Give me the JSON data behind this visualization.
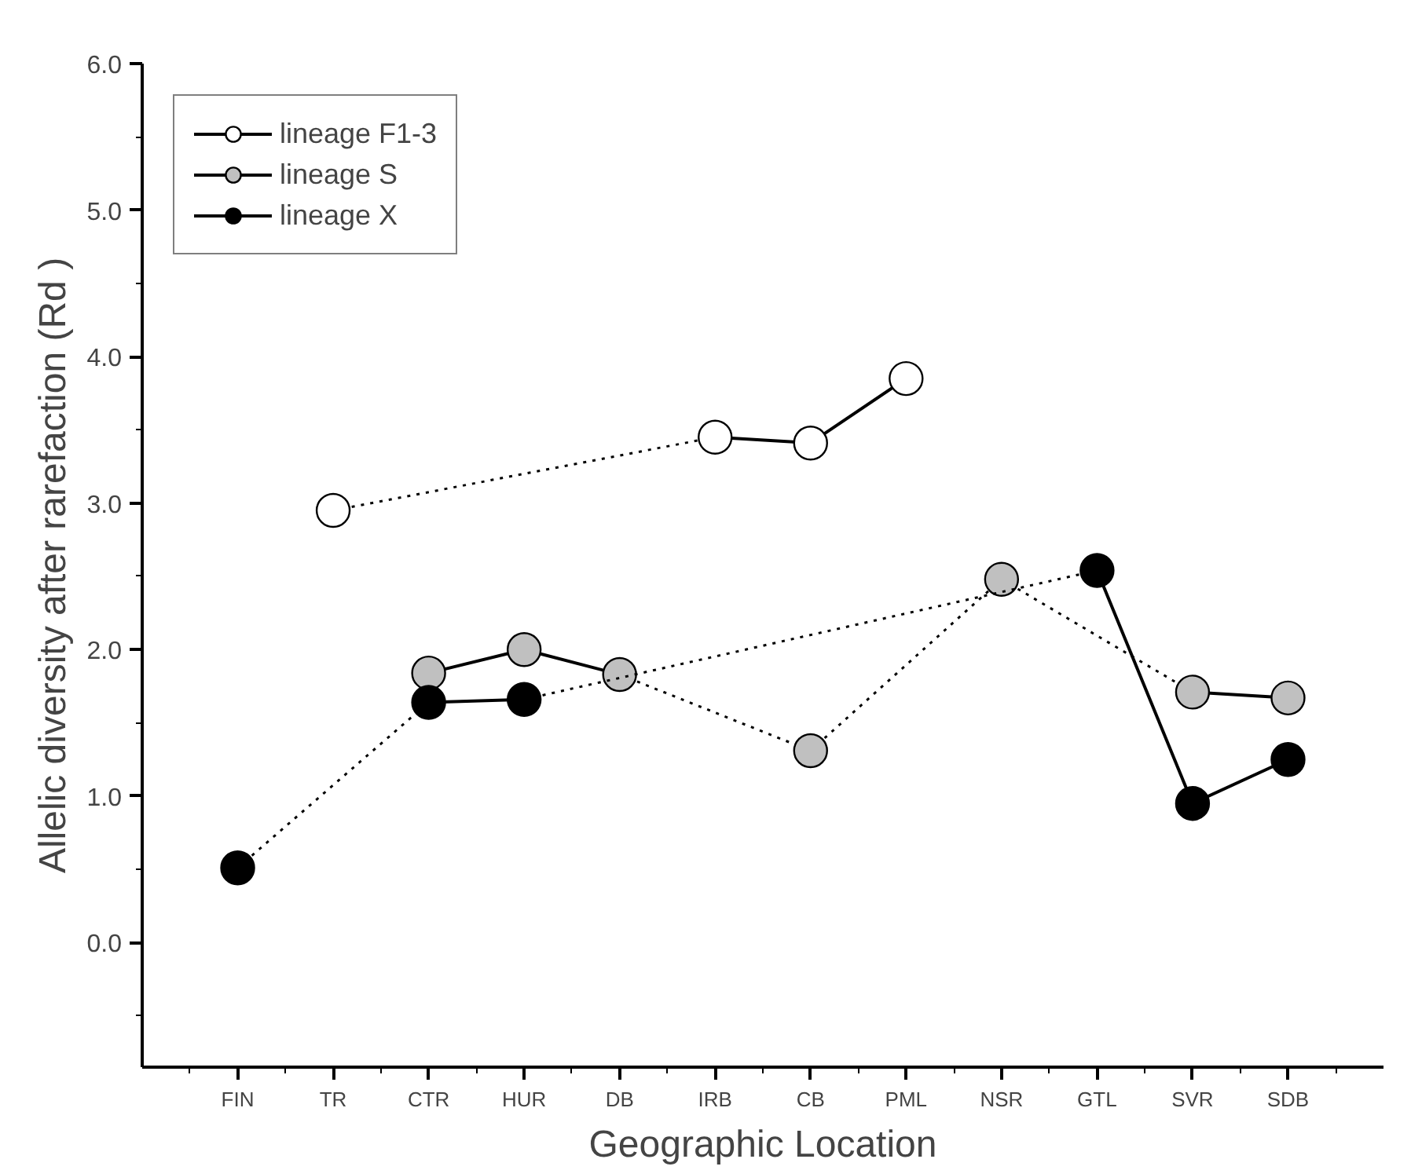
{
  "chart_data": {
    "type": "line",
    "xlabel": "Geographic Location",
    "ylabel": "Allelic diversity after rarefaction (Rd )",
    "categories": [
      "FIN",
      "TR",
      "CTR",
      "HUR",
      "DB",
      "IRB",
      "CB",
      "PML",
      "NSR",
      "GTL",
      "SVR",
      "SDB"
    ],
    "series": [
      {
        "name": "lineage F1-3",
        "color": "#ffffff",
        "values": [
          null,
          2.95,
          null,
          null,
          null,
          3.45,
          3.41,
          3.85,
          null,
          null,
          null,
          null
        ]
      },
      {
        "name": "lineage S",
        "color": "#c0c0c0",
        "values": [
          null,
          null,
          1.84,
          2.0,
          1.83,
          null,
          1.31,
          null,
          2.48,
          null,
          1.71,
          1.67
        ]
      },
      {
        "name": "lineage X",
        "color": "#000000",
        "values": [
          0.51,
          null,
          1.64,
          1.66,
          null,
          null,
          null,
          null,
          null,
          2.54,
          0.95,
          1.25
        ]
      }
    ],
    "ylim": [
      -0.85,
      6.0
    ],
    "yticks": [
      {
        "value": 0,
        "label": "0.0"
      },
      {
        "value": 1,
        "label": "1.0"
      },
      {
        "value": 2,
        "label": "2.0"
      },
      {
        "value": 3,
        "label": "3.0"
      },
      {
        "value": 4,
        "label": "4.0"
      },
      {
        "value": 5,
        "label": "5.0"
      },
      {
        "value": 6,
        "label": "6.0"
      }
    ],
    "marker": "circle",
    "line_style": "solid",
    "grid": false,
    "legend": "top left"
  }
}
